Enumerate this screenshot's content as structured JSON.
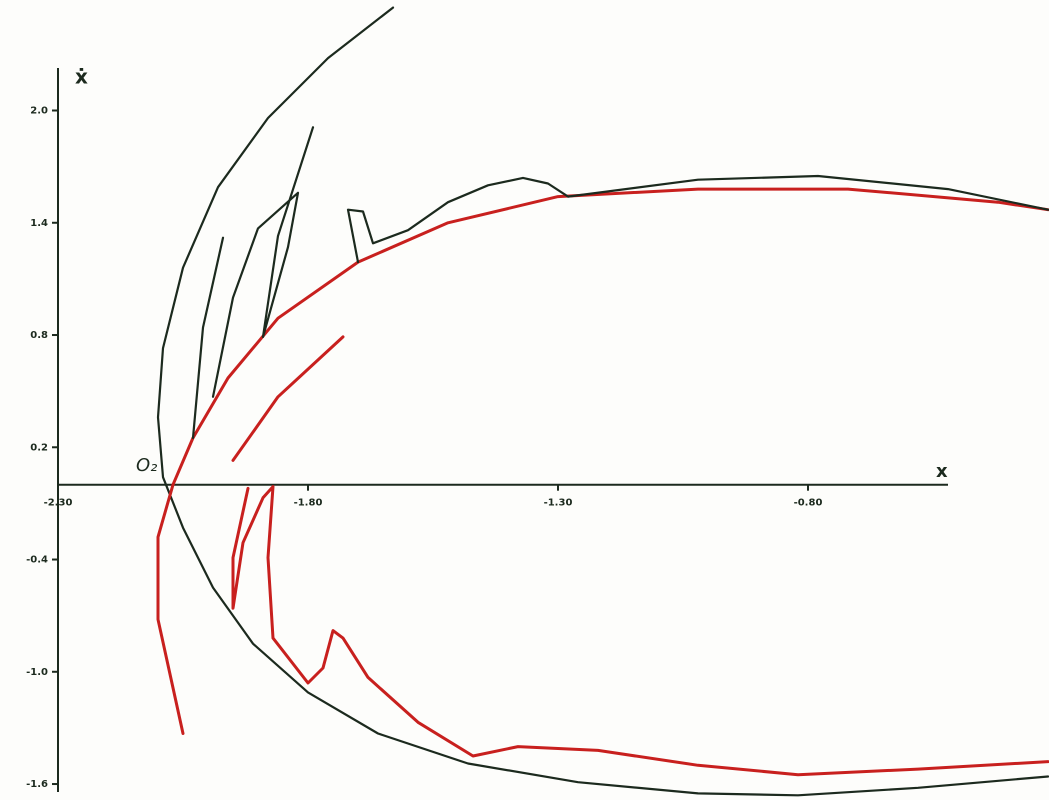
{
  "chart_data": {
    "type": "line",
    "x_label": "x",
    "y_label": "ẋ",
    "annotation": "O₂",
    "xlim": [
      -2.3,
      -0.32
    ],
    "ylim": [
      -1.68,
      2.58
    ],
    "xticks": [
      {
        "value": -2.3,
        "label": "-2.30"
      },
      {
        "value": -1.8,
        "label": "-1.80"
      },
      {
        "value": -1.3,
        "label": "-1.30"
      },
      {
        "value": -0.8,
        "label": "-0.80"
      }
    ],
    "yticks": [
      {
        "value": 2,
        "label": "2.0"
      },
      1.4,
      0.8,
      0.2,
      -0.4,
      {
        "value": -1,
        "label": "-1.0"
      },
      -1.6
    ],
    "series": [
      {
        "color": "#1c2a1e",
        "x": [
          -1.63,
          -1.76,
          -1.88,
          -1.98,
          -2.05,
          -2.09,
          -2.1,
          -2.09,
          -2.05,
          -1.99,
          -1.91,
          -1.8,
          -1.66,
          -1.48,
          -1.26,
          -1.02,
          -0.82,
          -0.58,
          -0.32
        ],
        "values": [
          2.55,
          2.28,
          1.96,
          1.59,
          1.16,
          0.73,
          0.36,
          0.04,
          -0.23,
          -0.55,
          -0.85,
          -1.11,
          -1.33,
          -1.49,
          -1.59,
          -1.65,
          -1.66,
          -1.62,
          -1.56
        ]
      },
      {
        "color": "#c8201e",
        "x": [
          -2.05,
          -2.1,
          -2.1,
          -2.07,
          -2.03,
          -1.96,
          -1.86,
          -1.7,
          -1.52,
          -1.3,
          -1.02,
          -0.72,
          -0.42,
          -0.32
        ],
        "values": [
          -1.33,
          -0.72,
          -0.28,
          0.0,
          0.25,
          0.57,
          0.89,
          1.19,
          1.4,
          1.54,
          1.58,
          1.58,
          1.51,
          1.47
        ]
      },
      {
        "color": "#1c2a1e",
        "x": [
          -1.7,
          -1.72,
          -1.69,
          -1.67,
          -1.6,
          -1.52,
          -1.44,
          -1.37,
          -1.32,
          -1.28,
          -1.02,
          -0.78,
          -0.52,
          -0.32
        ],
        "values": [
          1.19,
          1.47,
          1.46,
          1.29,
          1.36,
          1.51,
          1.6,
          1.64,
          1.61,
          1.54,
          1.63,
          1.65,
          1.58,
          1.47
        ]
      },
      {
        "color": "#1c2a1e",
        "x": [
          -2.03,
          -2.01,
          -1.97
        ],
        "values": [
          0.25,
          0.84,
          1.32
        ]
      },
      {
        "color": "#1c2a1e",
        "x": [
          -1.99,
          -1.95,
          -1.9,
          -1.82,
          -1.84,
          -1.89,
          -1.86,
          -1.79
        ],
        "values": [
          0.47,
          1.0,
          1.37,
          1.56,
          1.27,
          0.79,
          1.33,
          1.91
        ]
      },
      {
        "color": "#c8201e",
        "x": [
          -1.95,
          -1.86,
          -1.73
        ],
        "values": [
          0.13,
          0.47,
          0.79
        ]
      },
      {
        "color": "#c8201e",
        "x": [
          -1.92,
          -1.95,
          -1.95,
          -1.93,
          -1.89,
          -1.87,
          -1.88,
          -1.87,
          -1.8,
          -1.77,
          -1.75,
          -1.73,
          -1.68,
          -1.58,
          -1.47,
          -1.38,
          -1.22,
          -1.02,
          -0.82,
          -0.58,
          -0.32
        ],
        "values": [
          -0.02,
          -0.39,
          -0.66,
          -0.31,
          -0.07,
          -0.01,
          -0.39,
          -0.82,
          -1.06,
          -0.98,
          -0.78,
          -0.82,
          -1.03,
          -1.27,
          -1.45,
          -1.4,
          -1.42,
          -1.5,
          -1.55,
          -1.52,
          -1.48
        ]
      }
    ]
  }
}
